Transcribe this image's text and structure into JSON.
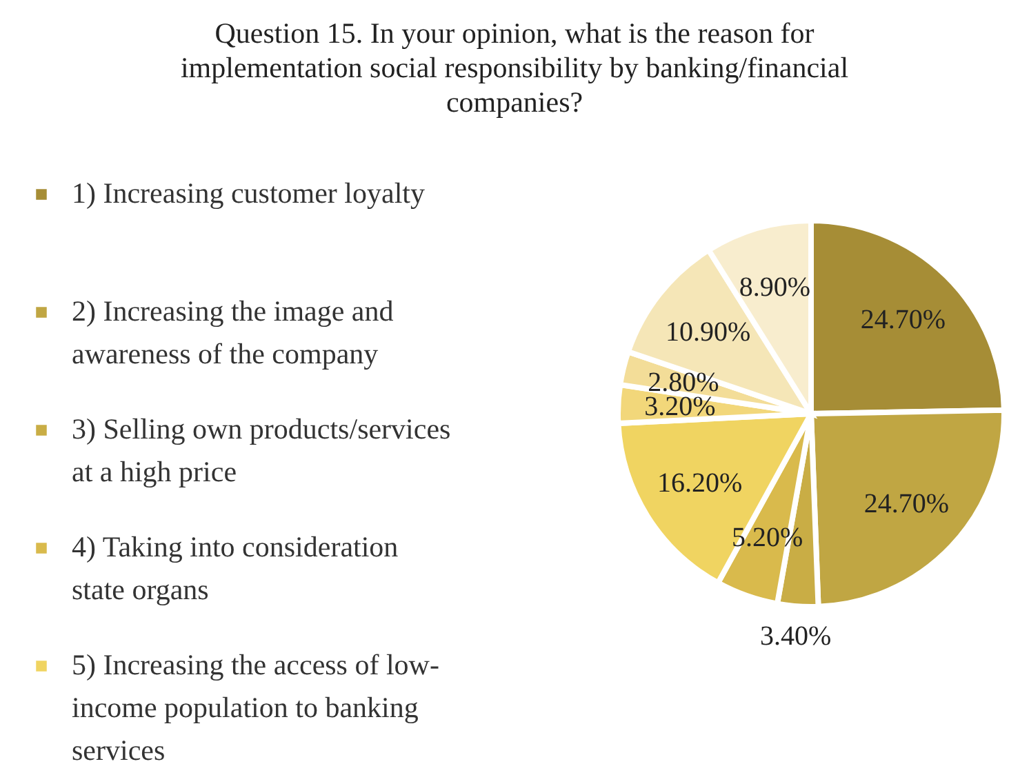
{
  "chart_data": {
    "type": "pie",
    "title": "Question 15. In your opinion, what is the reason for implementation social responsibility by banking/financial companies?",
    "categories": [
      "1) Increasing customer loyalty",
      "2) Increasing the image and awareness of the company",
      "3) Selling own products/services at a high price",
      "4) Taking into consideration state organs",
      "5) Increasing the access of low-income population to banking services",
      null,
      null,
      null,
      null
    ],
    "values": [
      24.7,
      24.7,
      3.4,
      5.2,
      16.2,
      3.2,
      2.8,
      10.9,
      8.9
    ],
    "colors": [
      "#a68d36",
      "#c0a643",
      "#c9ad45",
      "#d9ba4c",
      "#f0d461",
      "#f2d77a",
      "#f3dd98",
      "#f5e6b7",
      "#f8edce"
    ],
    "value_labels": [
      "24.70%",
      "24.70%",
      "3.40%",
      "5.20%",
      "16.20%",
      "3.20%",
      "2.80%",
      "10.90%",
      "8.90%"
    ],
    "legend": "left"
  }
}
